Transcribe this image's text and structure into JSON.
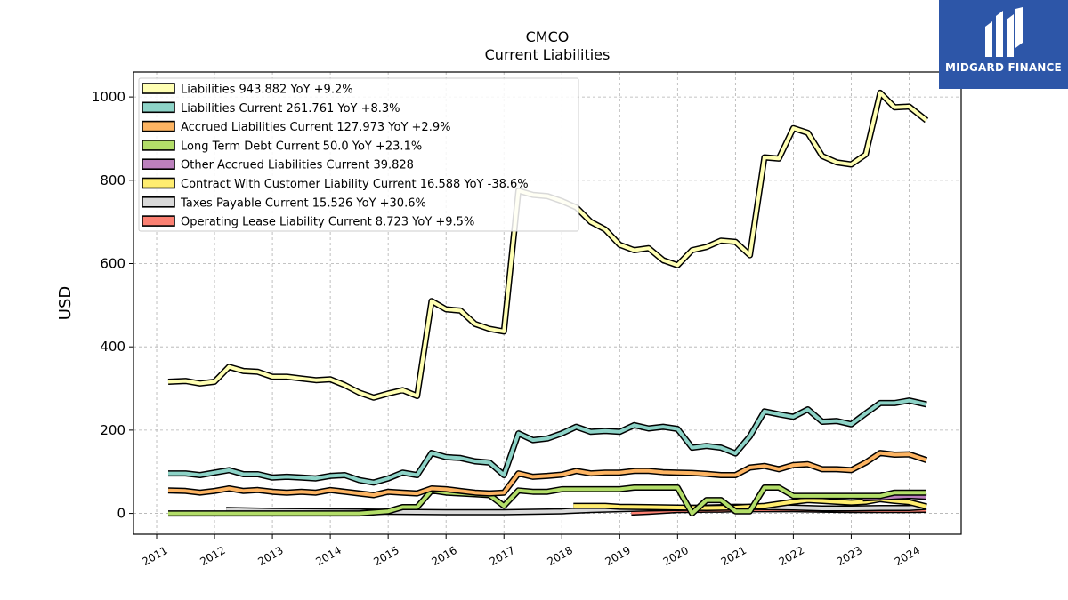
{
  "chart_data": {
    "type": "line",
    "title": "CMCO",
    "subtitle": "Current  Liabilities",
    "xlabel": "",
    "ylabel": "USD",
    "ylim": [
      -50,
      1060
    ],
    "xlim": [
      2010.6,
      2024.9
    ],
    "yticks": [
      0,
      200,
      400,
      600,
      800,
      1000
    ],
    "xticks": [
      2011,
      2012,
      2013,
      2014,
      2015,
      2016,
      2017,
      2018,
      2019,
      2020,
      2021,
      2022,
      2023,
      2024
    ],
    "grid": true,
    "legend_position": "top-left",
    "series": [
      {
        "name": "Liabilities",
        "legend_label": "Liabilities  943.882 YoY +9.2%",
        "color": "#ffffb3",
        "x": [
          2011.2,
          2011.5,
          2011.75,
          2012.0,
          2012.25,
          2012.5,
          2012.75,
          2013.0,
          2013.25,
          2013.5,
          2013.75,
          2014.0,
          2014.25,
          2014.5,
          2014.75,
          2015.0,
          2015.25,
          2015.5,
          2015.75,
          2016.0,
          2016.25,
          2016.5,
          2016.75,
          2017.0,
          2017.25,
          2017.5,
          2017.75,
          2018.0,
          2018.25,
          2018.5,
          2018.75,
          2019.0,
          2019.25,
          2019.5,
          2019.75,
          2020.0,
          2020.25,
          2020.5,
          2020.75,
          2021.0,
          2021.25,
          2021.5,
          2021.75,
          2022.0,
          2022.25,
          2022.5,
          2022.75,
          2023.0,
          2023.25,
          2023.5,
          2023.75,
          2024.0,
          2024.3
        ],
        "y": [
          316,
          318,
          312,
          316,
          352,
          342,
          340,
          328,
          328,
          324,
          320,
          322,
          308,
          290,
          278,
          288,
          296,
          282,
          510,
          490,
          487,
          455,
          443,
          437,
          775,
          765,
          762,
          750,
          735,
          700,
          682,
          645,
          632,
          637,
          608,
          596,
          632,
          640,
          655,
          652,
          620,
          855,
          852,
          925,
          914,
          858,
          843,
          838,
          862,
          1010,
          975,
          977,
          943.882
        ]
      },
      {
        "name": "Liabilities Current",
        "legend_label": "Liabilities Current  261.761 YoY +8.3%",
        "color": "#8dd3c7",
        "x": [
          2011.2,
          2011.5,
          2011.75,
          2012.0,
          2012.25,
          2012.5,
          2012.75,
          2013.0,
          2013.25,
          2013.5,
          2013.75,
          2014.0,
          2014.25,
          2014.5,
          2014.75,
          2015.0,
          2015.25,
          2015.5,
          2015.75,
          2016.0,
          2016.25,
          2016.5,
          2016.75,
          2017.0,
          2017.25,
          2017.5,
          2017.75,
          2018.0,
          2018.25,
          2018.5,
          2018.75,
          2019.0,
          2019.25,
          2019.5,
          2019.75,
          2020.0,
          2020.25,
          2020.5,
          2020.75,
          2021.0,
          2021.25,
          2021.5,
          2021.75,
          2022.0,
          2022.25,
          2022.5,
          2022.75,
          2023.0,
          2023.25,
          2023.5,
          2023.75,
          2024.0,
          2024.3
        ],
        "y": [
          96,
          96,
          92,
          98,
          104,
          94,
          94,
          86,
          88,
          86,
          84,
          90,
          92,
          80,
          74,
          84,
          98,
          92,
          145,
          135,
          133,
          125,
          122,
          92,
          192,
          176,
          180,
          192,
          208,
          196,
          198,
          196,
          212,
          204,
          208,
          203,
          158,
          162,
          158,
          144,
          185,
          245,
          238,
          232,
          250,
          220,
          222,
          214,
          240,
          265,
          265,
          271,
          261.761
        ]
      },
      {
        "name": "Accrued Liabilities Current",
        "legend_label": "Accrued Liabilities Current  127.973 YoY +2.9%",
        "color": "#fdb462",
        "x": [
          2011.2,
          2011.5,
          2011.75,
          2012.0,
          2012.25,
          2012.5,
          2012.75,
          2013.0,
          2013.25,
          2013.5,
          2013.75,
          2014.0,
          2014.25,
          2014.5,
          2014.75,
          2015.0,
          2015.25,
          2015.5,
          2015.75,
          2016.0,
          2016.25,
          2016.5,
          2016.75,
          2017.0,
          2017.25,
          2017.5,
          2017.75,
          2018.0,
          2018.25,
          2018.5,
          2018.75,
          2019.0,
          2019.25,
          2019.5,
          2019.75,
          2020.0,
          2020.25,
          2020.5,
          2020.75,
          2021.0,
          2021.25,
          2021.5,
          2021.75,
          2022.0,
          2022.25,
          2022.5,
          2022.75,
          2023.0,
          2023.25,
          2023.5,
          2023.75,
          2024.0,
          2024.3
        ],
        "y": [
          55,
          54,
          50,
          54,
          60,
          54,
          56,
          52,
          50,
          52,
          50,
          56,
          52,
          48,
          44,
          52,
          50,
          48,
          60,
          58,
          54,
          50,
          48,
          50,
          96,
          88,
          90,
          93,
          102,
          96,
          98,
          98,
          102,
          102,
          99,
          98,
          97,
          95,
          92,
          92,
          110,
          114,
          106,
          116,
          118,
          106,
          106,
          104,
          122,
          145,
          141,
          142,
          127.973
        ]
      },
      {
        "name": "Long Term Debt Current",
        "legend_label": "Long Term Debt Current  50.0 YoY +23.1%",
        "color": "#b3de69",
        "x": [
          2011.2,
          2012.0,
          2012.5,
          2013.0,
          2013.5,
          2014.0,
          2014.5,
          2015.0,
          2015.25,
          2015.5,
          2015.75,
          2016.0,
          2016.5,
          2016.75,
          2017.0,
          2017.25,
          2017.5,
          2017.75,
          2018.0,
          2018.5,
          2019.0,
          2019.25,
          2019.5,
          2020.0,
          2020.25,
          2020.5,
          2020.75,
          2021.0,
          2021.25,
          2021.5,
          2021.75,
          2022.0,
          2022.5,
          2023.0,
          2023.5,
          2023.75,
          2024.0,
          2024.3
        ],
        "y": [
          0,
          0,
          0,
          0,
          0,
          0,
          0,
          5,
          15,
          15,
          55,
          50,
          46,
          44,
          18,
          55,
          52,
          52,
          58,
          58,
          58,
          62,
          62,
          62,
          0,
          32,
          32,
          5,
          5,
          62,
          62,
          42,
          42,
          42,
          42,
          50,
          50,
          50
        ]
      },
      {
        "name": "Other Accrued Liabilities Current",
        "legend_label": "Other Accrued Liabilities Current  39.828",
        "color": "#bc80bd",
        "x": [
          2023.2,
          2023.5,
          2023.75,
          2024.0,
          2024.3
        ],
        "y": [
          36,
          38,
          40,
          42,
          39.828
        ]
      },
      {
        "name": "Contract With Customer Liability Current",
        "legend_label": "Contract With Customer Liability Current  16.588 YoY -38.6%",
        "color": "#ffed6f",
        "x": [
          2018.2,
          2018.5,
          2018.75,
          2019.0,
          2019.5,
          2020.0,
          2020.5,
          2021.0,
          2021.5,
          2022.0,
          2022.25,
          2022.5,
          2022.75,
          2023.0,
          2023.25,
          2023.5,
          2023.75,
          2024.0,
          2024.3
        ],
        "y": [
          18,
          18,
          18,
          16,
          15,
          14,
          13,
          14,
          18,
          28,
          32,
          30,
          28,
          26,
          28,
          34,
          30,
          27,
          16.588
        ]
      },
      {
        "name": "Taxes Payable Current",
        "legend_label": "Taxes Payable Current  15.526 YoY +30.6%",
        "color": "#d9d9d9",
        "x": [
          2012.2,
          2013.0,
          2014.0,
          2015.0,
          2016.0,
          2017.0,
          2018.0,
          2018.5,
          2019.0,
          2019.5,
          2020.0,
          2020.5,
          2021.0,
          2021.5,
          2022.0,
          2022.5,
          2023.0,
          2023.5,
          2024.0,
          2024.3
        ],
        "y": [
          8,
          6,
          5,
          4,
          3,
          3,
          5,
          8,
          10,
          12,
          13,
          14,
          16,
          15,
          14,
          12,
          12,
          13,
          13,
          15.526
        ]
      },
      {
        "name": "Operating Lease Liability Current",
        "legend_label": "Operating Lease Liability Current  8.723 YoY +9.5%",
        "color": "#fb8072",
        "x": [
          2019.2,
          2019.5,
          2019.75,
          2020.0,
          2020.25,
          2020.5,
          2020.75,
          2021.0,
          2021.5,
          2022.0,
          2022.5,
          2023.0,
          2023.5,
          2024.0,
          2024.3
        ],
        "y": [
          2,
          4,
          6,
          8,
          8,
          9,
          9,
          10,
          10,
          10,
          9,
          8,
          8,
          8,
          8.723
        ]
      }
    ]
  },
  "logo": {
    "text": "MIDGARD FINANCE",
    "background": "#2d56a8"
  }
}
